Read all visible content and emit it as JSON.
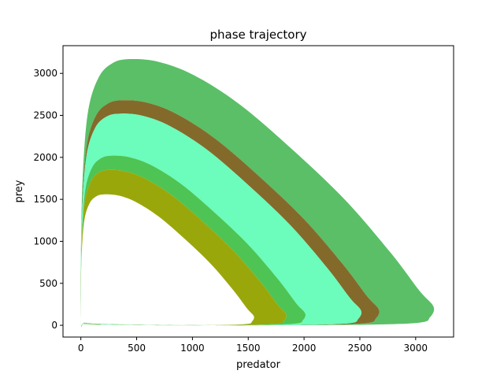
{
  "chart_data": {
    "type": "line",
    "title": "phase trajectory",
    "xlabel": "predator",
    "ylabel": "prey",
    "xlim": [
      -160,
      3340
    ],
    "ylim": [
      -140,
      3330
    ],
    "xticks": [
      0,
      500,
      1000,
      1500,
      2000,
      2500,
      3000
    ],
    "yticks": [
      0,
      500,
      1000,
      1500,
      2000,
      2500,
      3000
    ],
    "grid": false,
    "legend": "none",
    "series": [
      {
        "color": "#5bbf67",
        "outer": [
          [
            0,
            0
          ],
          [
            3160,
            0
          ],
          [
            3160,
            3170
          ]
        ],
        "inner": [
          [
            0,
            0
          ],
          [
            2670,
            0
          ],
          [
            2670,
            2680
          ]
        ]
      },
      {
        "color": "#836a2b",
        "outer": [
          [
            0,
            0
          ],
          [
            2670,
            0
          ],
          [
            2670,
            2680
          ]
        ],
        "inner": [
          [
            0,
            0
          ],
          [
            2510,
            0
          ],
          [
            2510,
            2520
          ]
        ]
      },
      {
        "color": "#6cfcbc",
        "outer": [
          [
            0,
            0
          ],
          [
            2510,
            0
          ],
          [
            2510,
            2520
          ]
        ],
        "inner": [
          [
            0,
            0
          ],
          [
            2010,
            0
          ],
          [
            2010,
            2020
          ]
        ]
      },
      {
        "color": "#4ec454",
        "outer": [
          [
            0,
            0
          ],
          [
            2010,
            0
          ],
          [
            2010,
            2020
          ]
        ],
        "inner": [
          [
            0,
            0
          ],
          [
            1840,
            0
          ],
          [
            1840,
            1850
          ]
        ]
      },
      {
        "color": "#9aa70a",
        "outer": [
          [
            0,
            0
          ],
          [
            1840,
            0
          ],
          [
            1840,
            1850
          ]
        ],
        "inner": [
          [
            0,
            0
          ],
          [
            1550,
            0
          ],
          [
            1550,
            1560
          ]
        ]
      }
    ]
  }
}
